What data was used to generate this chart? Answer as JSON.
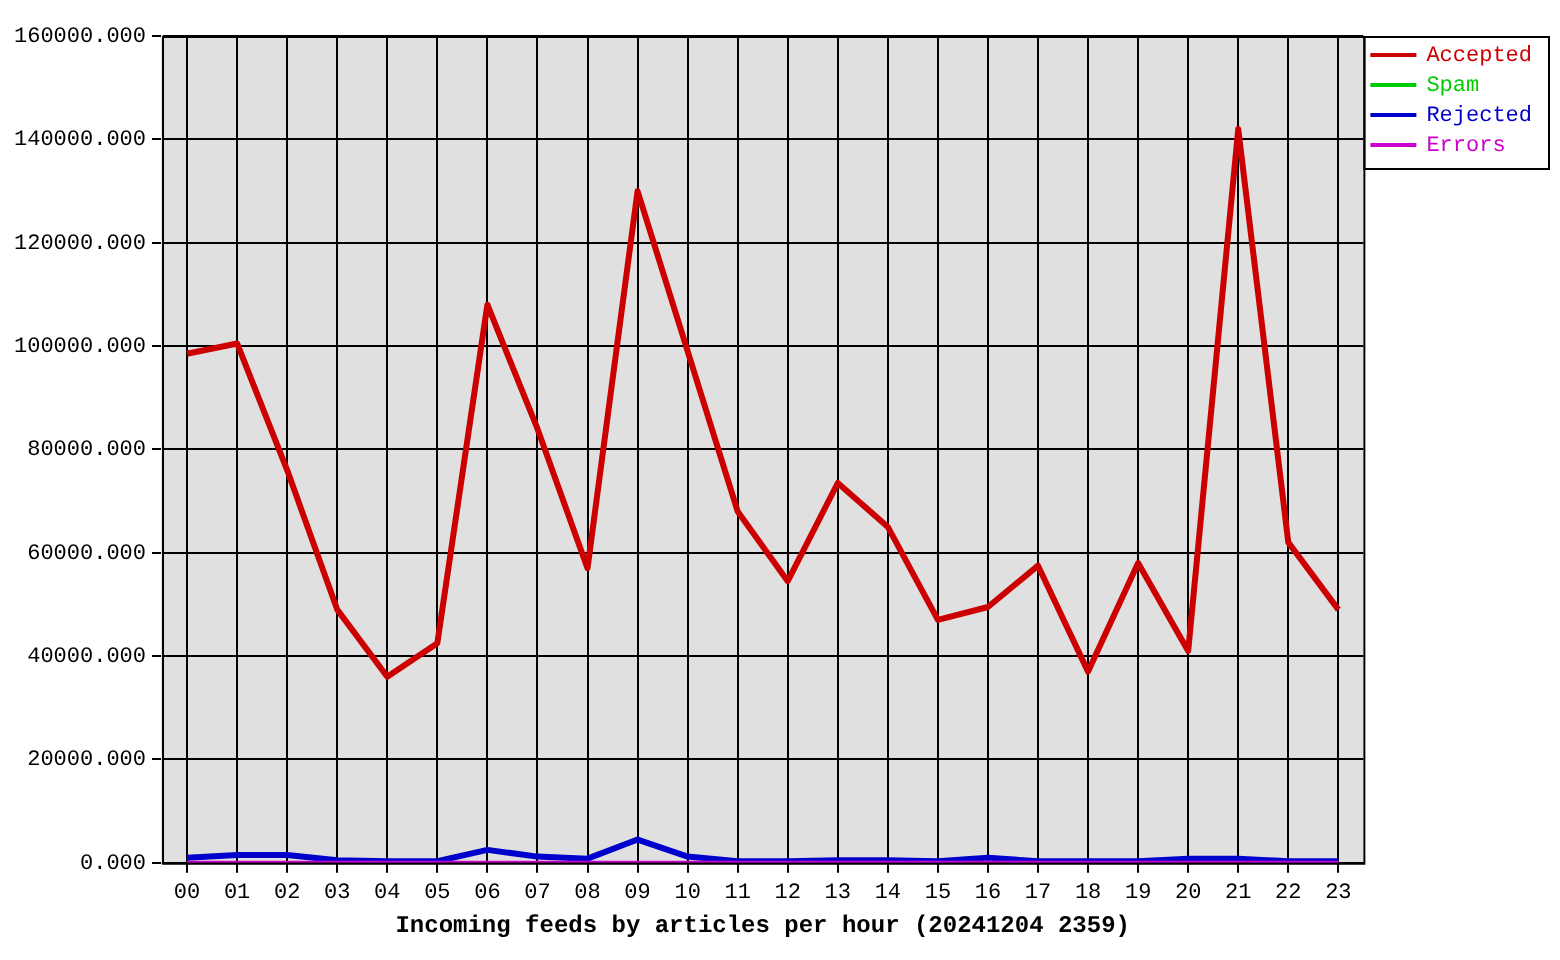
{
  "chart_data": {
    "type": "line",
    "xlabel": "Incoming feeds by articles per hour (20241204 2359)",
    "categories": [
      "00",
      "01",
      "02",
      "03",
      "04",
      "05",
      "06",
      "07",
      "08",
      "09",
      "10",
      "11",
      "12",
      "13",
      "14",
      "15",
      "16",
      "17",
      "18",
      "19",
      "20",
      "21",
      "22",
      "23"
    ],
    "series": [
      {
        "name": "Accepted",
        "color": "#cc0000",
        "values": [
          98500,
          100500,
          76000,
          49000,
          36000,
          42500,
          108000,
          84000,
          57000,
          130000,
          99000,
          68000,
          54500,
          73500,
          65000,
          47000,
          49500,
          57500,
          37000,
          58000,
          41000,
          142000,
          62000,
          49000
        ]
      },
      {
        "name": "Spam",
        "color": "#00cc00",
        "values": [
          null,
          null,
          null,
          null,
          null,
          null,
          null,
          null,
          null,
          null,
          null,
          null,
          null,
          null,
          null,
          null,
          null,
          null,
          null,
          null,
          null,
          null,
          null,
          null
        ]
      },
      {
        "name": "Rejected",
        "color": "#0000cc",
        "values": [
          1000,
          1500,
          1500,
          500,
          300,
          300,
          2500,
          1200,
          800,
          4500,
          1200,
          300,
          300,
          500,
          500,
          300,
          1000,
          300,
          300,
          300,
          800,
          800,
          300,
          300
        ]
      },
      {
        "name": "Errors",
        "color": "#cc00cc",
        "values": [
          0,
          0,
          0,
          0,
          0,
          0,
          0,
          0,
          0,
          0,
          0,
          0,
          0,
          0,
          0,
          0,
          0,
          0,
          0,
          0,
          0,
          0,
          0,
          0
        ]
      }
    ],
    "ylim": [
      0,
      160000
    ],
    "yticks": [
      {
        "value": 0,
        "label": "0.000"
      },
      {
        "value": 20000,
        "label": "20000.000"
      },
      {
        "value": 40000,
        "label": "40000.000"
      },
      {
        "value": 60000,
        "label": "60000.000"
      },
      {
        "value": 80000,
        "label": "80000.000"
      },
      {
        "value": 100000,
        "label": "100000.000"
      },
      {
        "value": 120000,
        "label": "120000.000"
      },
      {
        "value": 140000,
        "label": "140000.000"
      },
      {
        "value": 160000,
        "label": "160000.000"
      }
    ],
    "grid": true,
    "legend": "right",
    "marker": "none",
    "line_style": "solid"
  }
}
